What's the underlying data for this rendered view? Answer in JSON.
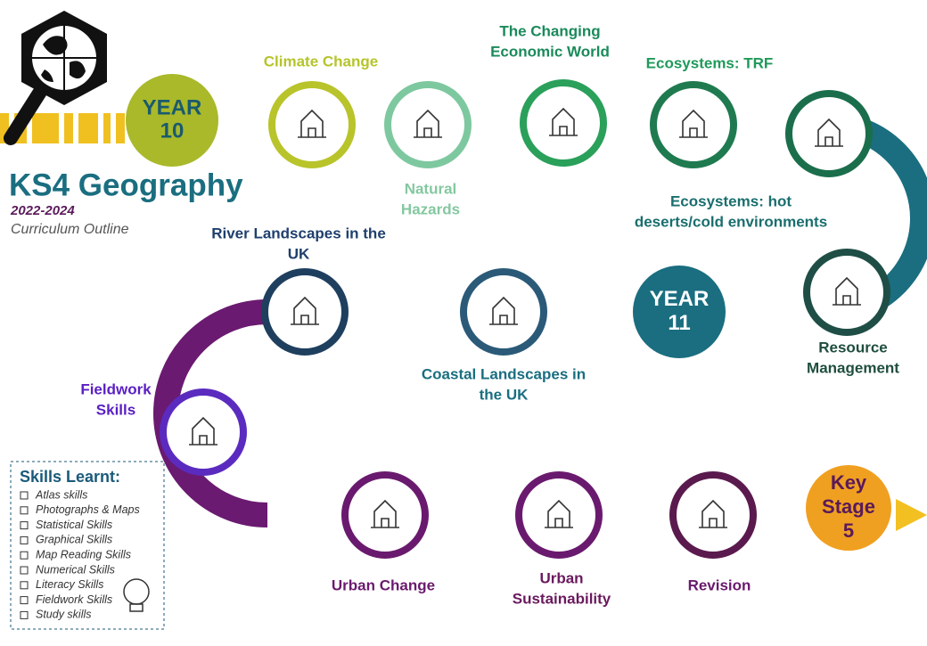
{
  "header": {
    "title": "KS4 Geography",
    "years": "2022-2024",
    "subtitle": "Curriculum Outline"
  },
  "milestones": [
    {
      "lines": [
        "YEAR",
        "10"
      ]
    },
    {
      "lines": [
        "YEAR",
        "11"
      ]
    },
    {
      "lines": [
        "Key",
        "Stage",
        "5"
      ]
    }
  ],
  "nodes": [
    {
      "lines": [
        "Climate Change"
      ]
    },
    {
      "lines": [
        "Natural",
        "Hazards"
      ]
    },
    {
      "lines": [
        "The Changing",
        "Economic World"
      ]
    },
    {
      "lines": [
        "Ecosystems: TRF"
      ]
    },
    {
      "lines": [
        "Ecosystems: hot",
        "deserts/cold environments"
      ]
    },
    {
      "lines": [
        "Resource",
        "Management"
      ]
    },
    {
      "lines": [
        "Coastal Landscapes in",
        "the UK"
      ]
    },
    {
      "lines": [
        "River Landscapes in the",
        "UK"
      ]
    },
    {
      "lines": [
        "Fieldwork",
        "Skills"
      ]
    },
    {
      "lines": [
        "Urban Change"
      ]
    },
    {
      "lines": [
        "Urban",
        "Sustainability"
      ]
    },
    {
      "lines": [
        "Revision"
      ]
    }
  ],
  "skills": {
    "title": "Skills Learnt:",
    "items": [
      "Atlas skills",
      "Photographs & Maps",
      "Statistical Skills",
      "Graphical Skills",
      "Map Reading Skills",
      "Numerical Skills",
      "Literacy Skills",
      "Fieldwork Skills",
      "Study skills"
    ]
  }
}
